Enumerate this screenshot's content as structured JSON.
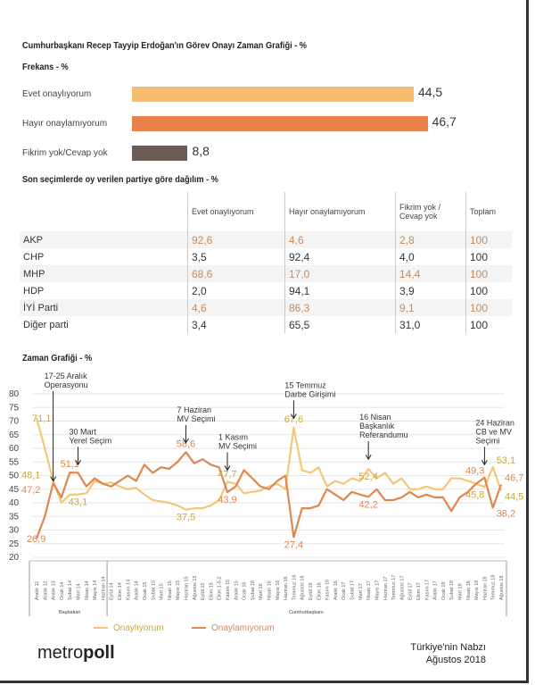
{
  "title": "Cumhurbaşkanı Recep Tayyip Erdoğan'ın Görev Onayı Zaman Grafiği - %",
  "frekans": {
    "heading": "Frekans - %",
    "bars": [
      {
        "label": "Evet onaylıyorum",
        "value": 44.5,
        "display": "44,5",
        "color": "#f6bd6e"
      },
      {
        "label": "Hayır onaylamıyorum",
        "value": 46.7,
        "display": "46,7",
        "color": "#e9824a"
      },
      {
        "label": "Fikrim yok/Cevap yok",
        "value": 8.8,
        "display": "8,8",
        "color": "#6b5c58"
      }
    ]
  },
  "party_table": {
    "heading": "Son seçimlerde oy verilen partiye göre dağılım - %",
    "columns": [
      "Evet onaylıyorum",
      "Hayır onaylamıyorum",
      "Fikrim yok / Cevap yok",
      "Toplam"
    ],
    "rows": [
      {
        "party": "AKP",
        "values": [
          "92,6",
          "4,6",
          "2,8",
          "100"
        ]
      },
      {
        "party": "CHP",
        "values": [
          "3,5",
          "92,4",
          "4,0",
          "100"
        ]
      },
      {
        "party": "MHP",
        "values": [
          "68,6",
          "17,0",
          "14,4",
          "100"
        ]
      },
      {
        "party": "HDP",
        "values": [
          "2,0",
          "94,1",
          "3,9",
          "100"
        ]
      },
      {
        "party": "İYİ Parti",
        "values": [
          "4,6",
          "86,3",
          "9,1",
          "100"
        ]
      },
      {
        "party": "Diğer parti",
        "values": [
          "3,4",
          "65,5",
          "31,0",
          "100"
        ]
      }
    ]
  },
  "chart_data": {
    "type": "line",
    "title": "Zaman Grafiği - %",
    "ylim": [
      20,
      80
    ],
    "yticks": [
      20,
      25,
      30,
      35,
      40,
      45,
      50,
      55,
      60,
      65,
      70,
      75,
      80
    ],
    "grid": true,
    "categories": [
      "Aralık 11",
      "Aralık 12",
      "Aralık 13",
      "Ocak 14",
      "Şubat 14",
      "Mart 14",
      "Nisan 14",
      "Mayıs 14",
      "Haziran 14",
      "Eylül 14",
      "Ekim 14",
      "Kasım 14",
      "Aralık 14",
      "Ocak 15",
      "Şubat 15",
      "Mart 15",
      "Nisan 15",
      "Mayıs 15",
      "Haziran 15",
      "Ağustos 15",
      "Eylül 15",
      "Ekim 15",
      "Ekim 1-5-2",
      "Kasım 15",
      "Aralık 15",
      "Ocak 16",
      "Şubat 16",
      "Mart 16",
      "Nisan 16",
      "Mayıs 16",
      "Haziran 16",
      "Temmuz 16",
      "Ağustos 16",
      "Eylül 16",
      "Ekim 16",
      "Kasım 16",
      "Aralık 16",
      "Ocak 17",
      "Şubat 17",
      "Mart 17",
      "Nisan 17",
      "Mayıs 17",
      "Haziran 17",
      "Temmuz 17",
      "Ağustos 17",
      "Eylül 17",
      "Ekim 17",
      "Kasım 17",
      "Aralık 17",
      "Ocak 18",
      "Şubat 18",
      "Mart 18",
      "Nisan 18",
      "Mayıs 18",
      "Haziran 18",
      "Temmuz 18",
      "Ağustos 18"
    ],
    "periods": [
      {
        "label": "Başbakan",
        "from": 0,
        "to": 8
      },
      {
        "label": "Cumhurbaşkanı",
        "from": 9,
        "to": 56
      }
    ],
    "series": [
      {
        "name": "Onaylıyorum",
        "color": "#f2c878",
        "labelColor": "#c9a83a",
        "values": [
          71.1,
          60,
          48.1,
          40,
          43,
          43.1,
          43.5,
          48,
          47,
          47.5,
          46,
          45,
          45.5,
          43,
          41,
          40.5,
          40,
          39,
          37.5,
          38,
          38,
          39,
          41,
          47.7,
          47,
          43.5,
          44,
          44.5,
          46,
          47,
          45,
          67.6,
          52,
          51,
          53,
          46,
          48,
          47,
          49,
          48,
          52.4,
          49,
          51,
          47,
          49,
          45,
          45,
          46,
          45,
          45,
          49,
          49,
          48,
          47,
          45.8,
          53.1,
          44.5
        ]
      },
      {
        "name": "Onaylamıyorum",
        "color": "#e08650",
        "labelColor": "#e08650",
        "values": [
          26.9,
          35,
          47.2,
          42,
          51.1,
          51,
          46,
          49,
          47,
          46,
          48,
          50,
          48,
          54,
          51,
          53,
          52.5,
          55,
          58.6,
          54.5,
          56,
          54,
          53,
          43.9,
          46,
          52,
          49,
          46,
          45,
          48,
          50,
          27.4,
          38,
          38,
          39,
          45,
          43,
          41,
          44,
          43,
          42.2,
          45,
          41,
          41,
          42,
          44,
          42,
          43,
          42,
          42,
          37,
          42,
          44,
          47,
          49.3,
          38.2,
          46.7
        ]
      }
    ],
    "data_labels": [
      {
        "series": 0,
        "index": 0,
        "text": "71,1"
      },
      {
        "series": 0,
        "index": 2,
        "text": "48,1"
      },
      {
        "series": 1,
        "index": 2,
        "text": "47,2"
      },
      {
        "series": 1,
        "index": 0,
        "text": "26,9"
      },
      {
        "series": 1,
        "index": 4,
        "text": "51,1"
      },
      {
        "series": 0,
        "index": 5,
        "text": "43,1"
      },
      {
        "series": 1,
        "index": 18,
        "text": "58,6"
      },
      {
        "series": 0,
        "index": 18,
        "text": "37,5"
      },
      {
        "series": 0,
        "index": 23,
        "text": "47,7"
      },
      {
        "series": 1,
        "index": 23,
        "text": "43,9"
      },
      {
        "series": 0,
        "index": 31,
        "text": "67,6"
      },
      {
        "series": 1,
        "index": 31,
        "text": "27,4"
      },
      {
        "series": 0,
        "index": 40,
        "text": "52,4"
      },
      {
        "series": 1,
        "index": 40,
        "text": "42,2"
      },
      {
        "series": 1,
        "index": 54,
        "text": "49,3"
      },
      {
        "series": 0,
        "index": 54,
        "text": "45,8"
      },
      {
        "series": 0,
        "index": 55,
        "text": "53,1"
      },
      {
        "series": 1,
        "index": 55,
        "text": "38,2"
      },
      {
        "series": 1,
        "index": 56,
        "text": "46,7"
      },
      {
        "series": 0,
        "index": 56,
        "text": "44,5"
      }
    ],
    "annotations": [
      {
        "index": 2,
        "lines": [
          "17-25 Aralık",
          "Operasyonu"
        ],
        "target": 48
      },
      {
        "index": 5,
        "lines": [
          "30 Mart",
          "Yerel Seçim"
        ],
        "target": 54
      },
      {
        "index": 18,
        "lines": [
          "7 Haziran",
          "MV Seçimi"
        ],
        "target": 62
      },
      {
        "index": 23,
        "lines": [
          "1 Kasım",
          "MV Seçimi"
        ],
        "target": 52
      },
      {
        "index": 31,
        "lines": [
          "15 Temmuz",
          "Darbe Girişimi"
        ],
        "target": 71
      },
      {
        "index": 40,
        "lines": [
          "16 Nisan",
          "Başkanlık",
          "Referandumu"
        ],
        "target": 56
      },
      {
        "index": 54,
        "lines": [
          "24 Haziran",
          "CB ve MV",
          "Seçimi"
        ],
        "target": 54
      }
    ]
  },
  "footer": {
    "logo_light": "metro",
    "logo_bold": "poll",
    "line1": "Türkiye'nin Nabzı",
    "line2": "Ağustos 2018"
  }
}
